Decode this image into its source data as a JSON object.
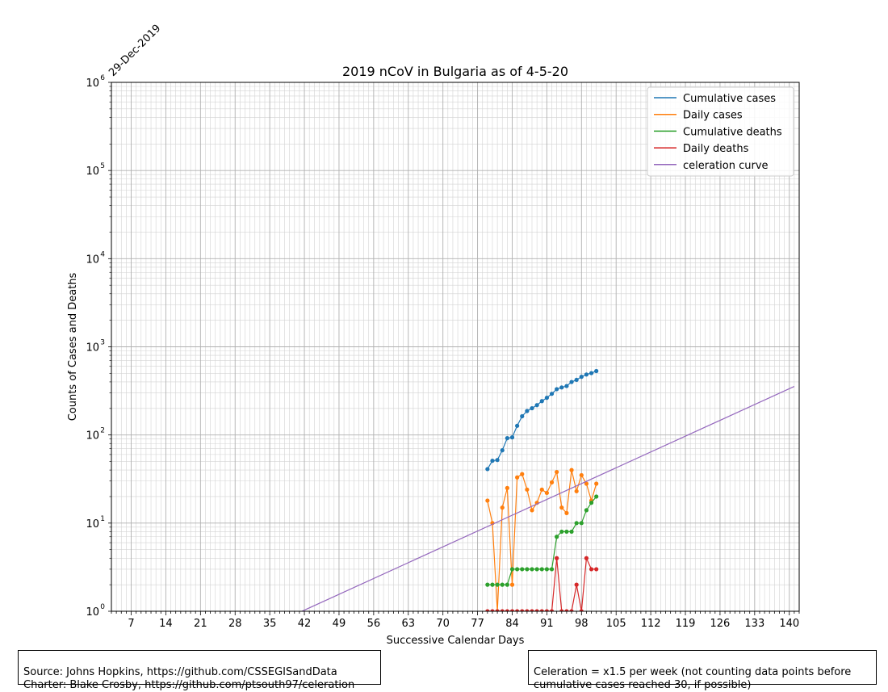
{
  "chart_data": {
    "type": "line",
    "title": "2019 nCoV in Bulgaria as of 4-5-20",
    "xlabel": "Successive Calendar Days",
    "ylabel": "Counts of Cases and Deaths",
    "start_date_label": "29-Dec-2019",
    "xlim": [
      3,
      142
    ],
    "ylim": [
      1,
      1000000
    ],
    "yscale": "log",
    "x_ticks": [
      7,
      14,
      21,
      28,
      35,
      42,
      49,
      56,
      63,
      70,
      77,
      84,
      91,
      98,
      105,
      112,
      119,
      126,
      133,
      140
    ],
    "y_ticks": [
      {
        "value": 1,
        "base": "10",
        "exp": "0"
      },
      {
        "value": 10,
        "base": "10",
        "exp": "1"
      },
      {
        "value": 100,
        "base": "10",
        "exp": "2"
      },
      {
        "value": 1000,
        "base": "10",
        "exp": "3"
      },
      {
        "value": 10000,
        "base": "10",
        "exp": "4"
      },
      {
        "value": 100000,
        "base": "10",
        "exp": "5"
      },
      {
        "value": 1000000,
        "base": "10",
        "exp": "6"
      }
    ],
    "grid": true,
    "legend_position": "top-right",
    "series": [
      {
        "name": "Cumulative cases",
        "color": "#1f77b4",
        "markers": true,
        "x": [
          79,
          80,
          81,
          82,
          83,
          84,
          85,
          86,
          87,
          88,
          89,
          90,
          91,
          92,
          93,
          94,
          95,
          96,
          97,
          98,
          99,
          100,
          101
        ],
        "y": [
          41,
          51,
          52,
          67,
          92,
          94,
          127,
          163,
          187,
          201,
          218,
          242,
          264,
          293,
          331,
          346,
          359,
          399,
          422,
          457,
          485,
          503,
          531
        ]
      },
      {
        "name": "Daily cases",
        "color": "#ff7f0e",
        "markers": true,
        "x": [
          79,
          80,
          81,
          82,
          83,
          84,
          85,
          86,
          87,
          88,
          89,
          90,
          91,
          92,
          93,
          94,
          95,
          96,
          97,
          98,
          99,
          100,
          101
        ],
        "y": [
          18,
          10,
          1,
          15,
          25,
          2,
          33,
          36,
          24,
          14,
          17,
          24,
          22,
          29,
          38,
          15,
          13,
          40,
          23,
          35,
          28,
          18,
          28
        ]
      },
      {
        "name": "Cumulative deaths",
        "color": "#2ca02c",
        "markers": true,
        "x": [
          79,
          80,
          81,
          82,
          83,
          84,
          85,
          86,
          87,
          88,
          89,
          90,
          91,
          92,
          93,
          94,
          95,
          96,
          97,
          98,
          99,
          100,
          101
        ],
        "y": [
          2,
          2,
          2,
          2,
          2,
          3,
          3,
          3,
          3,
          3,
          3,
          3,
          3,
          3,
          7,
          8,
          8,
          8,
          10,
          10,
          14,
          17,
          20
        ]
      },
      {
        "name": "Daily deaths",
        "color": "#d62728",
        "markers": true,
        "x": [
          79,
          80,
          81,
          82,
          83,
          84,
          85,
          86,
          87,
          88,
          89,
          90,
          91,
          92,
          93,
          94,
          95,
          96,
          97,
          98,
          99,
          100,
          101
        ],
        "y": [
          1,
          1,
          1,
          1,
          1,
          1,
          1,
          1,
          1,
          1,
          1,
          1,
          1,
          1,
          4,
          1,
          1,
          1,
          2,
          1,
          4,
          3,
          3
        ]
      },
      {
        "name": "celeration curve",
        "color": "#9467bd",
        "markers": false,
        "x": [
          41.5,
          141
        ],
        "y": [
          1,
          355
        ]
      }
    ]
  },
  "footer": {
    "source_line1": "Source: Johns Hopkins, https://github.com/CSSEGISandData",
    "source_line2": "Charter: Blake Crosby, https://github.com/ptsouth97/celeration",
    "celeration_line1": "Celeration = x1.5 per week (not counting data points before",
    "celeration_line2": "cumulative cases reached 30, if possible)"
  }
}
